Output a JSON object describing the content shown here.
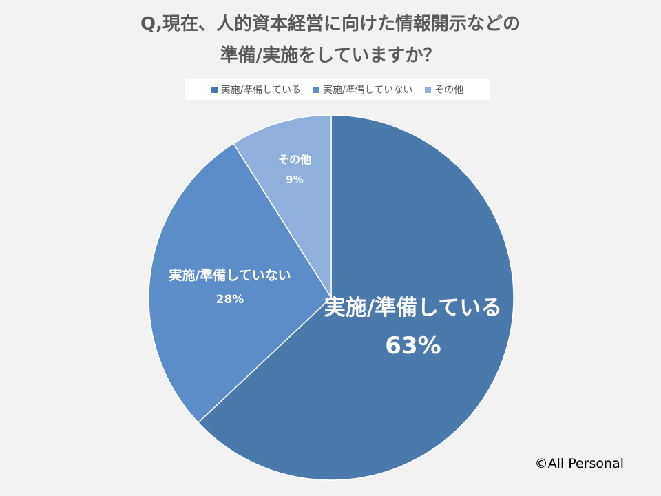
{
  "chart_data": {
    "type": "pie",
    "title_lines": [
      "Q,現在、人的資本経営に向けた情報開示などの",
      "準備/実施をしていますか？"
    ],
    "legend_position": "top",
    "slices": [
      {
        "label": "実施/準備している",
        "value": 63,
        "value_label": "63%",
        "color": "#4a7aab"
      },
      {
        "label": "実施/準備していない",
        "value": 28,
        "value_label": "28%",
        "color": "#5b8ec8"
      },
      {
        "label": "その他",
        "value": 9,
        "value_label": "9%",
        "color": "#8fb0dc"
      }
    ]
  },
  "footer": {
    "copyright": "©All Personal"
  }
}
